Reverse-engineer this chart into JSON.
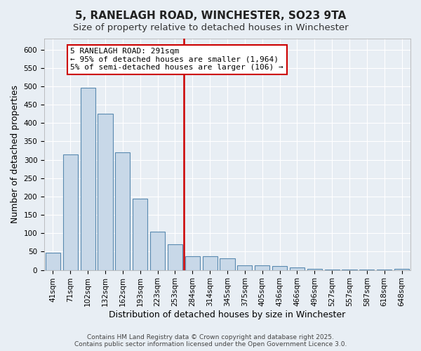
{
  "title1": "5, RANELAGH ROAD, WINCHESTER, SO23 9TA",
  "title2": "Size of property relative to detached houses in Winchester",
  "xlabel": "Distribution of detached houses by size in Winchester",
  "ylabel": "Number of detached properties",
  "categories": [
    "41sqm",
    "71sqm",
    "102sqm",
    "132sqm",
    "162sqm",
    "193sqm",
    "223sqm",
    "253sqm",
    "284sqm",
    "314sqm",
    "345sqm",
    "375sqm",
    "405sqm",
    "436sqm",
    "466sqm",
    "496sqm",
    "527sqm",
    "557sqm",
    "587sqm",
    "618sqm",
    "648sqm"
  ],
  "values": [
    47,
    315,
    497,
    425,
    320,
    195,
    105,
    70,
    38,
    37,
    32,
    13,
    13,
    10,
    7,
    4,
    2,
    1,
    1,
    1,
    4
  ],
  "bar_color": "#c8d8e8",
  "bar_edgecolor": "#5a8ab0",
  "vline_color": "#cc0000",
  "annotation_text": "5 RANELAGH ROAD: 291sqm\n← 95% of detached houses are smaller (1,964)\n5% of semi-detached houses are larger (106) →",
  "annotation_box_edgecolor": "#cc0000",
  "background_color": "#e8eef4",
  "grid_color": "#ffffff",
  "ylim": [
    0,
    630
  ],
  "footer": "Contains HM Land Registry data © Crown copyright and database right 2025.\nContains public sector information licensed under the Open Government Licence 3.0.",
  "title1_fontsize": 11,
  "title2_fontsize": 9.5,
  "xlabel_fontsize": 9,
  "ylabel_fontsize": 9,
  "tick_fontsize": 7.5,
  "annot_fontsize": 8,
  "footer_fontsize": 6.5
}
